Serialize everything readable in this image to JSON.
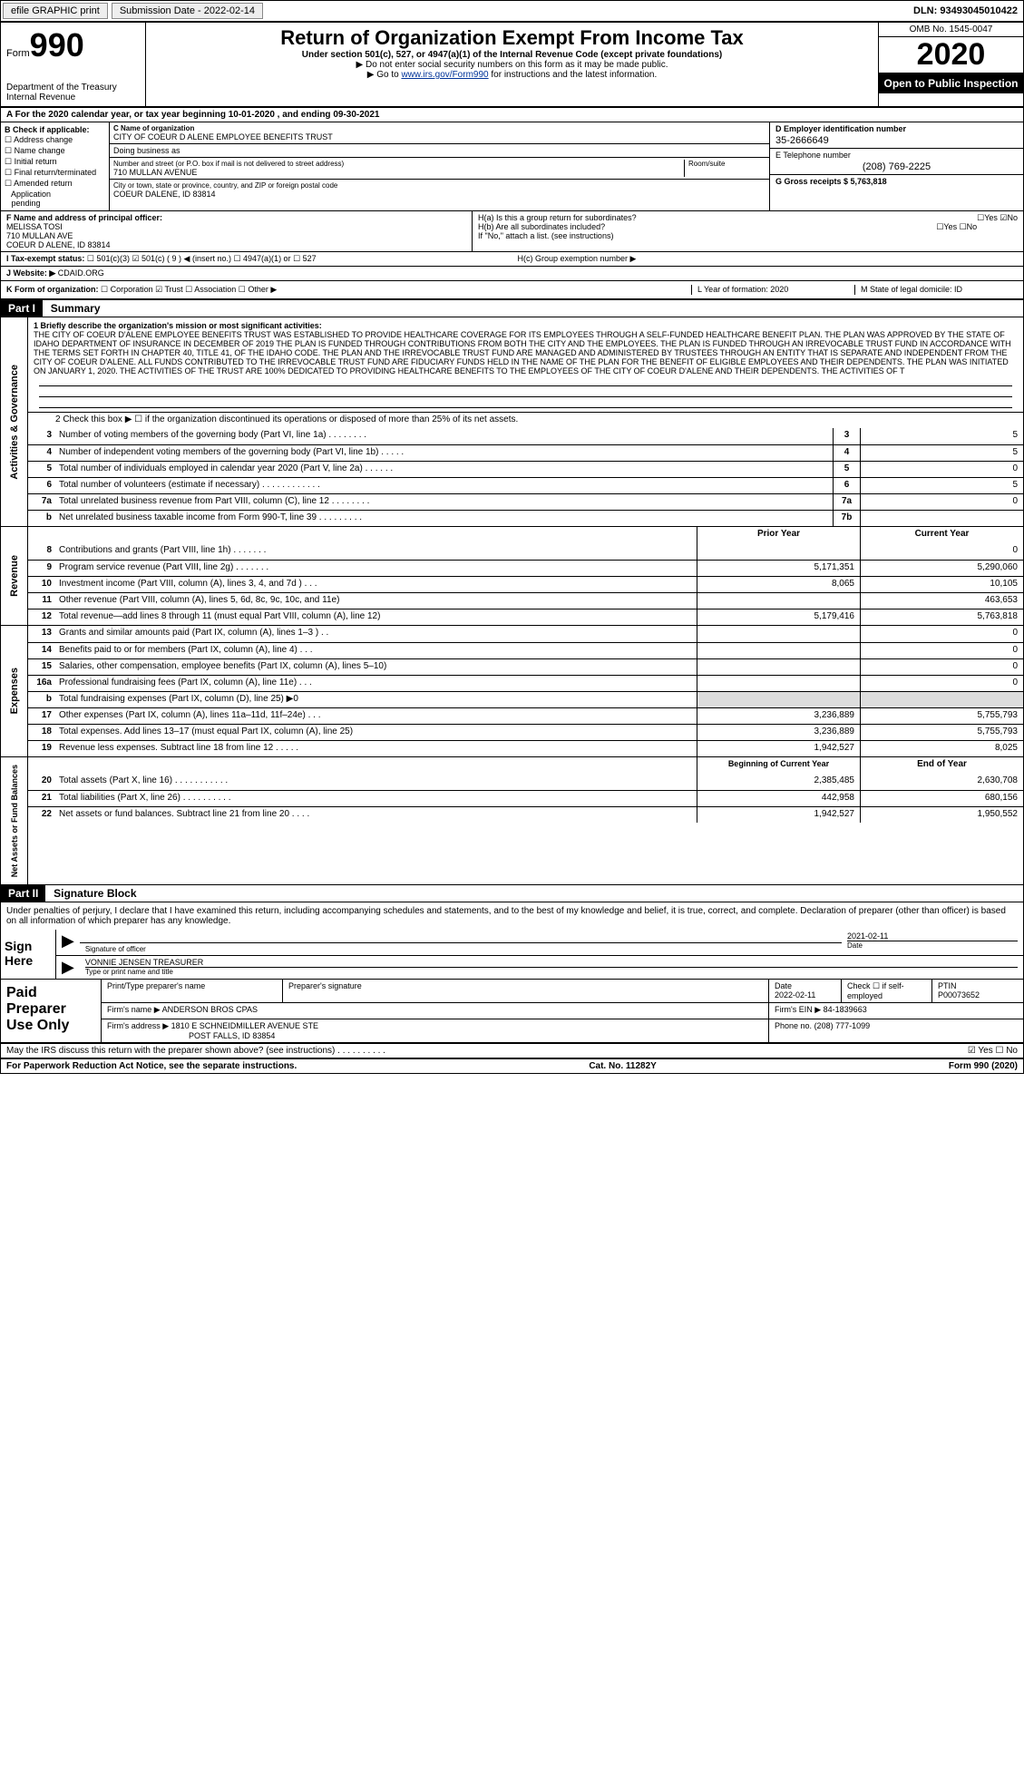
{
  "topbar": {
    "efile": "efile GRAPHIC print",
    "subdate_label": "Submission Date - 2022-02-14",
    "dln": "DLN: 93493045010422"
  },
  "header": {
    "form_label": "Form",
    "form_num": "990",
    "dept": "Department of the Treasury\nInternal Revenue",
    "title": "Return of Organization Exempt From Income Tax",
    "subtitle": "Under section 501(c), 527, or 4947(a)(1) of the Internal Revenue Code (except private foundations)",
    "note1": "▶ Do not enter social security numbers on this form as it may be made public.",
    "note2_pre": "▶ Go to ",
    "note2_link": "www.irs.gov/Form990",
    "note2_post": " for instructions and the latest information.",
    "omb": "OMB No. 1545-0047",
    "year": "2020",
    "otp": "Open to Public Inspection"
  },
  "a_row": "A For the 2020 calendar year, or tax year beginning 10-01-2020   , and ending 09-30-2021",
  "b": {
    "label": "B Check if applicable:",
    "items": [
      "☐ Address change",
      "☐ Name change",
      "☐ Initial return",
      "☐ Final return/terminated",
      "☐ Amended return",
      "   Application\n   pending"
    ]
  },
  "c": {
    "name_label": "C Name of organization",
    "name": "CITY OF COEUR D ALENE EMPLOYEE BENEFITS TRUST",
    "dba_label": "Doing business as",
    "addr_label": "Number and street (or P.O. box if mail is not delivered to street address)",
    "room_label": "Room/suite",
    "addr": "710 MULLAN AVENUE",
    "city_label": "City or town, state or province, country, and ZIP or foreign postal code",
    "city": "COEUR DALENE, ID  83814"
  },
  "d": {
    "label": "D Employer identification number",
    "val": "35-2666649"
  },
  "e": {
    "label": "E Telephone number",
    "val": "(208) 769-2225"
  },
  "g": {
    "label": "G Gross receipts $ 5,763,818"
  },
  "f": {
    "label": "F  Name and address of principal officer:",
    "name": "MELISSA TOSI",
    "addr1": "710 MULLAN AVE",
    "addr2": "COEUR D ALENE, ID  83814"
  },
  "h": {
    "ha": "H(a)  Is this a group return for subordinates?",
    "ha_yn": "☐Yes  ☑No",
    "hb": "H(b)  Are all subordinates included?",
    "hb_yn": "☐Yes  ☐No",
    "hb_note": "If \"No,\" attach a list. (see instructions)",
    "hc": "H(c)  Group exemption number ▶"
  },
  "i": {
    "label": "I   Tax-exempt status:",
    "opts": "☐ 501(c)(3)   ☑  501(c) ( 9 ) ◀ (insert no.)     ☐ 4947(a)(1) or   ☐ 527"
  },
  "j": {
    "label": "J   Website: ▶",
    "val": "CDAID.ORG"
  },
  "k": {
    "label": "K Form of organization:",
    "opts": "☐ Corporation  ☑ Trust  ☐ Association  ☐ Other ▶"
  },
  "l": {
    "label": "L Year of formation: 2020"
  },
  "m": {
    "label": "M State of legal domicile: ID"
  },
  "part1": {
    "hdr": "Part I",
    "title": "Summary",
    "q1_label": "1  Briefly describe the organization's mission or most significant activities:",
    "q1_text": "THE CITY OF COEUR D'ALENE EMPLOYEE BENEFITS TRUST WAS ESTABLISHED TO PROVIDE HEALTHCARE COVERAGE FOR ITS EMPLOYEES THROUGH A SELF-FUNDED HEALTHCARE BENEFIT PLAN. THE PLAN WAS APPROVED BY THE STATE OF IDAHO DEPARTMENT OF INSURANCE IN DECEMBER OF 2019 THE PLAN IS FUNDED THROUGH CONTRIBUTIONS FROM BOTH THE CITY AND THE EMPLOYEES. THE PLAN IS FUNDED THROUGH AN IRREVOCABLE TRUST FUND IN ACCORDANCE WITH THE TERMS SET FORTH IN CHAPTER 40, TITLE 41, OF THE IDAHO CODE. THE PLAN AND THE IRREVOCABLE TRUST FUND ARE MANAGED AND ADMINISTERED BY TRUSTEES THROUGH AN ENTITY THAT IS SEPARATE AND INDEPENDENT FROM THE CITY OF COEUR D'ALENE. ALL FUNDS CONTRIBUTED TO THE IRREVOCABLE TRUST FUND ARE FIDUCIARY FUNDS HELD IN THE NAME OF THE PLAN FOR THE BENEFIT OF ELIGIBLE EMPLOYEES AND THEIR DEPENDENTS. THE PLAN WAS INITIATED ON JANUARY 1, 2020. THE ACTIVITIES OF THE TRUST ARE 100% DEDICATED TO PROVIDING HEALTHCARE BENEFITS TO THE EMPLOYEES OF THE CITY OF COEUR D'ALENE AND THEIR DEPENDENTS. THE ACTIVITIES OF T",
    "q2": "2   Check this box ▶ ☐ if the organization discontinued its operations or disposed of more than 25% of its net assets.",
    "lines_ag": [
      {
        "n": "3",
        "t": "Number of voting members of the governing body (Part VI, line 1a)  .    .    .    .    .    .    .    .",
        "b": "3",
        "v": "5"
      },
      {
        "n": "4",
        "t": "Number of independent voting members of the governing body (Part VI, line 1b)   .    .    .    .    .",
        "b": "4",
        "v": "5"
      },
      {
        "n": "5",
        "t": "Total number of individuals employed in calendar year 2020 (Part V, line 2a)  .    .    .    .    .    .",
        "b": "5",
        "v": "0"
      },
      {
        "n": "6",
        "t": "Total number of volunteers (estimate if necessary)   .    .    .    .    .    .    .    .    .    .    .    .",
        "b": "6",
        "v": "5"
      },
      {
        "n": "7a",
        "t": "Total unrelated business revenue from Part VIII, column (C), line 12  .    .    .    .    .    .    .    .",
        "b": "7a",
        "v": "0"
      },
      {
        "n": "b",
        "t": "Net unrelated business taxable income from Form 990-T, line 39   .    .    .    .    .    .    .    .    .",
        "b": "7b",
        "v": ""
      }
    ],
    "col_hdr": {
      "prior": "Prior Year",
      "curr": "Current Year"
    },
    "rev": [
      {
        "n": "8",
        "t": "Contributions and grants (Part VIII, line 1h)   .    .    .    .    .    .    .",
        "p": "",
        "c": "0"
      },
      {
        "n": "9",
        "t": "Program service revenue (Part VIII, line 2g)   .    .    .    .    .    .    .",
        "p": "5,171,351",
        "c": "5,290,060"
      },
      {
        "n": "10",
        "t": "Investment income (Part VIII, column (A), lines 3, 4, and 7d )   .    .    .",
        "p": "8,065",
        "c": "10,105"
      },
      {
        "n": "11",
        "t": "Other revenue (Part VIII, column (A), lines 5, 6d, 8c, 9c, 10c, and 11e)",
        "p": "",
        "c": "463,653"
      },
      {
        "n": "12",
        "t": "Total revenue—add lines 8 through 11 (must equal Part VIII, column (A), line 12)",
        "p": "5,179,416",
        "c": "5,763,818"
      }
    ],
    "exp": [
      {
        "n": "13",
        "t": "Grants and similar amounts paid (Part IX, column (A), lines 1–3 )   .    .",
        "p": "",
        "c": "0"
      },
      {
        "n": "14",
        "t": "Benefits paid to or for members (Part IX, column (A), line 4)  .    .    .",
        "p": "",
        "c": "0"
      },
      {
        "n": "15",
        "t": "Salaries, other compensation, employee benefits (Part IX, column (A), lines 5–10)",
        "p": "",
        "c": "0"
      },
      {
        "n": "16a",
        "t": "Professional fundraising fees (Part IX, column (A), line 11e)   .    .    .",
        "p": "",
        "c": "0"
      },
      {
        "n": "b",
        "t": "Total fundraising expenses (Part IX, column (D), line 25) ▶0",
        "p": "SHADED",
        "c": "SHADED"
      },
      {
        "n": "17",
        "t": "Other expenses (Part IX, column (A), lines 11a–11d, 11f–24e)   .    .    .",
        "p": "3,236,889",
        "c": "5,755,793"
      },
      {
        "n": "18",
        "t": "Total expenses. Add lines 13–17 (must equal Part IX, column (A), line 25)",
        "p": "3,236,889",
        "c": "5,755,793"
      },
      {
        "n": "19",
        "t": "Revenue less expenses. Subtract line 18 from line 12   .    .    .    .    .",
        "p": "1,942,527",
        "c": "8,025"
      }
    ],
    "na_hdr": {
      "b": "Beginning of Current Year",
      "e": "End of Year"
    },
    "na": [
      {
        "n": "20",
        "t": "Total assets (Part X, line 16)  .    .    .    .    .    .    .    .    .    .    .",
        "p": "2,385,485",
        "c": "2,630,708"
      },
      {
        "n": "21",
        "t": "Total liabilities (Part X, line 26)  .    .    .    .    .    .    .    .    .    .",
        "p": "442,958",
        "c": "680,156"
      },
      {
        "n": "22",
        "t": "Net assets or fund balances. Subtract line 21 from line 20  .    .    .    .",
        "p": "1,942,527",
        "c": "1,950,552"
      }
    ]
  },
  "part2": {
    "hdr": "Part II",
    "title": "Signature Block",
    "penalty": "Under penalties of perjury, I declare that I have examined this return, including accompanying schedules and statements, and to the best of my knowledge and belief, it is true, correct, and complete. Declaration of preparer (other than officer) is based on all information of which preparer has any knowledge.",
    "sign_here": "Sign Here",
    "sig_officer": "Signature of officer",
    "sig_date": "2021-02-11",
    "date_label": "Date",
    "sig_name": "VONNIE JENSEN TREASURER",
    "type_label": "Type or print name and title",
    "paid": "Paid Preparer Use Only",
    "prep_name_label": "Print/Type preparer's name",
    "prep_sig_label": "Preparer's signature",
    "prep_date_label": "Date",
    "prep_date": "2022-02-11",
    "check_label": "Check ☐ if self-employed",
    "ptin_label": "PTIN",
    "ptin": "P00073652",
    "firm_name_label": "Firm's name    ▶",
    "firm_name": "ANDERSON BROS CPAS",
    "firm_ein_label": "Firm's EIN ▶",
    "firm_ein": "84-1839663",
    "firm_addr_label": "Firm's address ▶",
    "firm_addr1": "1810 E SCHNEIDMILLER AVENUE STE",
    "firm_addr2": "POST FALLS, ID  83854",
    "phone_label": "Phone no.",
    "phone": "(208) 777-1099",
    "discuss": "May the IRS discuss this return with the preparer shown above? (see instructions)   .    .    .    .    .    .    .    .    .    .",
    "discuss_yn": "☑ Yes  ☐ No"
  },
  "footer": {
    "pra": "For Paperwork Reduction Act Notice, see the separate instructions.",
    "cat": "Cat. No. 11282Y",
    "form": "Form 990 (2020)"
  },
  "vlabels": {
    "ag": "Activities & Governance",
    "rev": "Revenue",
    "exp": "Expenses",
    "na": "Net Assets or Fund Balances"
  }
}
